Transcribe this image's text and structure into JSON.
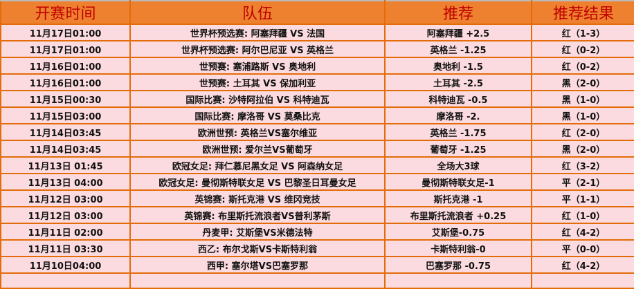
{
  "headers": [
    "开赛时间",
    "队伍",
    "推荐",
    "推荐结果"
  ],
  "rows": [
    {
      "time": "11月17日01:00",
      "match": "世界杯预选赛: 阿塞拜疆 VS 法国",
      "pick": "阿塞拜疆 +2.5",
      "result": "红（1-3）"
    },
    {
      "time": "11月17日01:00",
      "match": "世界杯预选赛: 阿尔巴尼亚 VS 英格兰",
      "pick": "英格兰 -1.25",
      "result": "红（0-2）"
    },
    {
      "time": "11月16日01:00",
      "match": "世预赛: 塞浦路斯 VS 奥地利",
      "pick": "奥地利 -1.5",
      "result": "红（0-2）"
    },
    {
      "time": "11月16日01:00",
      "match": "世预赛: 土耳其 VS 保加利亚",
      "pick": "土耳其 -2.5",
      "result": "黑（2-0）"
    },
    {
      "time": "11月15日00:30",
      "match": "国际比赛: 沙特阿拉伯 VS 科特迪瓦",
      "pick": "科特迪瓦 -0.5",
      "result": "黑（1-0）"
    },
    {
      "time": "11月15日03:00",
      "match": "国际比赛: 摩洛哥 VS 莫桑比克",
      "pick": "摩洛哥 -2.",
      "result": "黑（1-0）"
    },
    {
      "time": "11月14日03:45",
      "match": "欧洲世预: 英格兰VS塞尔维亚",
      "pick": "英格兰 -1.75",
      "result": "红（2-0）"
    },
    {
      "time": "11月14日03:45",
      "match": "欧洲世预: 爱尔兰VS葡萄牙",
      "pick": "葡萄牙 -1.25",
      "result": "黑（2-0）"
    },
    {
      "time": "11月13日 01:45",
      "match": "欧冠女足: 拜仁慕尼黑女足 VS 阿森纳女足",
      "pick": "全场大3球",
      "result": "红（3-2）"
    },
    {
      "time": "11月13日 04:00",
      "match": "欧冠女足: 曼彻斯特联女足 VS 巴黎圣日耳曼女足",
      "pick": "曼彻斯特联女足-1",
      "result": "平（2-1）"
    },
    {
      "time": "11月12日 03:00",
      "match": "英锦赛: 斯托克港 VS 维冈竞技",
      "pick": "斯托克港 -1",
      "result": "平（1-1）"
    },
    {
      "time": "11月12日 03:00",
      "match": "英锦赛: 布里斯托流浪者VS普利茅斯",
      "pick": "布里斯托流浪者 +0.25",
      "result": "红（1-0）"
    },
    {
      "time": "11月11日 02:00",
      "match": "丹麦甲: 艾斯堡VS米德法特",
      "pick": "艾斯堡-0.75",
      "result": "红（4-2）"
    },
    {
      "time": "11月11日 03:30",
      "match": "西乙: 布尔戈斯VS卡斯特利翁",
      "pick": "卡斯特利翁-0",
      "result": "平（0-0）"
    },
    {
      "time": "11月10日04:00",
      "match": "西甲: 塞尔塔VS巴塞罗那",
      "pick": "巴塞罗那 -0.75",
      "result": "红（4-2）"
    }
  ],
  "colors": {
    "header_bg": "#ee8130",
    "header_text": "#c00000",
    "row_bg": "#fbdbe0",
    "border": "#e36c09"
  }
}
